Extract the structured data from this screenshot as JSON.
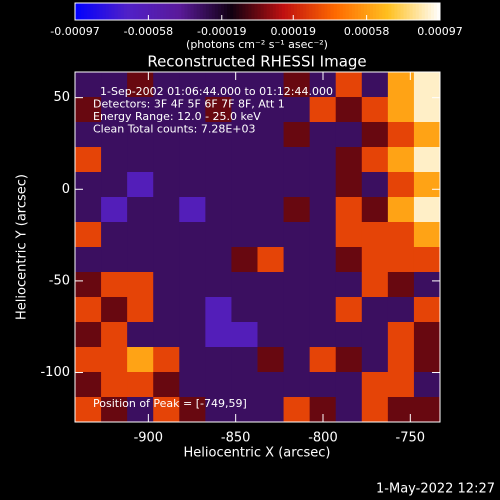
{
  "chart_data": {
    "type": "heatmap",
    "title": "Reconstructed RHESSI Image",
    "xlabel": "Heliocentric X (arcsec)",
    "ylabel": "Heliocentric Y (arcsec)",
    "xlim": [
      -942,
      -733
    ],
    "xticks": [
      -900,
      -850,
      -800,
      -750
    ],
    "ylim": [
      -127,
      64
    ],
    "yticks": [
      -100,
      -50,
      0,
      50
    ],
    "colorbar": {
      "lim": [
        -0.00097,
        0.00097
      ],
      "ticks": [
        -0.00097,
        -0.00058,
        -0.00019,
        0.00019,
        0.00058,
        0.00097
      ],
      "label": "(photons cm⁻² s⁻¹ asec⁻²)",
      "colors": [
        "#0000ff",
        "#5020c8",
        "#5a1a9a",
        "#100010",
        "#c01010",
        "#ff6a00",
        "#ffc020",
        "#ffffff"
      ]
    },
    "annotations": [
      "1-Sep-2002 01:06:44.000 to 01:12:44.000",
      "Detectors: 3F 4F 5F 6F 7F 8F, Att 1",
      "Energy Range: 12.0 - 25.0 keV",
      "Clean     Total counts: 7.28E+03"
    ],
    "peak_label": "Position of Peak = [-749,59]",
    "footer": "1-May-2022 12:27",
    "z": [
      [
        -0.0003,
        -0.0003,
        0,
        -0.0003,
        -0.0003,
        -0.0003,
        -0.0003,
        -0.0003,
        0,
        -0.0003,
        0.0003,
        -0.0003,
        0.0006,
        0.0009
      ],
      [
        0,
        -0.0003,
        -0.0003,
        -0.0003,
        -0.0003,
        0,
        -0.0003,
        -0.0003,
        -0.0003,
        0.0003,
        0,
        0.0003,
        0.0006,
        0.0009
      ],
      [
        -0.0003,
        -0.0003,
        -0.0003,
        -0.0003,
        -0.0003,
        -0.0003,
        -0.0003,
        -0.0003,
        0,
        -0.0003,
        -0.0003,
        0,
        0.0003,
        0.0006
      ],
      [
        0.0003,
        -0.0003,
        -0.0003,
        -0.0003,
        -0.0003,
        -0.0003,
        -0.0003,
        -0.0003,
        -0.0003,
        -0.0003,
        0,
        0.0003,
        0.0006,
        0.0009
      ],
      [
        -0.0003,
        -0.0003,
        -0.0006,
        -0.0003,
        -0.0003,
        -0.0003,
        -0.0003,
        -0.0003,
        -0.0003,
        -0.0003,
        0,
        -0.0003,
        0.0003,
        0.0006
      ],
      [
        -0.0003,
        -0.0006,
        -0.0003,
        -0.0003,
        -0.0006,
        -0.0003,
        -0.0003,
        -0.0003,
        0,
        -0.0003,
        0.0003,
        0,
        0.0006,
        0.0009
      ],
      [
        0.0003,
        -0.0003,
        -0.0003,
        -0.0003,
        -0.0003,
        -0.0003,
        -0.0003,
        -0.0003,
        -0.0003,
        -0.0003,
        0.0003,
        0.0003,
        0.0003,
        0.0006
      ],
      [
        -0.0003,
        -0.0003,
        -0.0003,
        -0.0003,
        -0.0003,
        -0.0003,
        0,
        0.0003,
        -0.0003,
        -0.0003,
        0,
        0.0003,
        0.0003,
        0.0003
      ],
      [
        0,
        0.0003,
        0.0003,
        -0.0003,
        -0.0003,
        -0.0003,
        -0.0003,
        -0.0003,
        -0.0003,
        -0.0003,
        -0.0003,
        0.0003,
        0,
        -0.0003
      ],
      [
        0.0003,
        0,
        0.0003,
        -0.0003,
        -0.0003,
        -0.0006,
        -0.0003,
        -0.0003,
        -0.0003,
        -0.0003,
        0.0003,
        -0.0003,
        -0.0003,
        0.0003
      ],
      [
        0,
        0.0003,
        -0.0003,
        -0.0003,
        -0.0003,
        -0.0006,
        -0.0006,
        -0.0003,
        -0.0003,
        -0.0003,
        -0.0003,
        -0.0003,
        0.0003,
        0
      ],
      [
        0.0003,
        0.0003,
        0.0006,
        0.0003,
        -0.0003,
        -0.0003,
        -0.0003,
        0,
        -0.0003,
        0.0003,
        0,
        -0.0003,
        0.0003,
        0
      ],
      [
        0,
        0.0003,
        0.0003,
        0,
        -0.0003,
        -0.0003,
        -0.0003,
        -0.0003,
        -0.0003,
        -0.0003,
        -0.0003,
        0.0003,
        0.0003,
        -0.0003
      ],
      [
        0.0003,
        0,
        -0.0003,
        0.0003,
        0,
        -0.0003,
        -0.0003,
        -0.0003,
        0.0003,
        0,
        -0.0003,
        0.0003,
        0,
        0
      ]
    ]
  }
}
